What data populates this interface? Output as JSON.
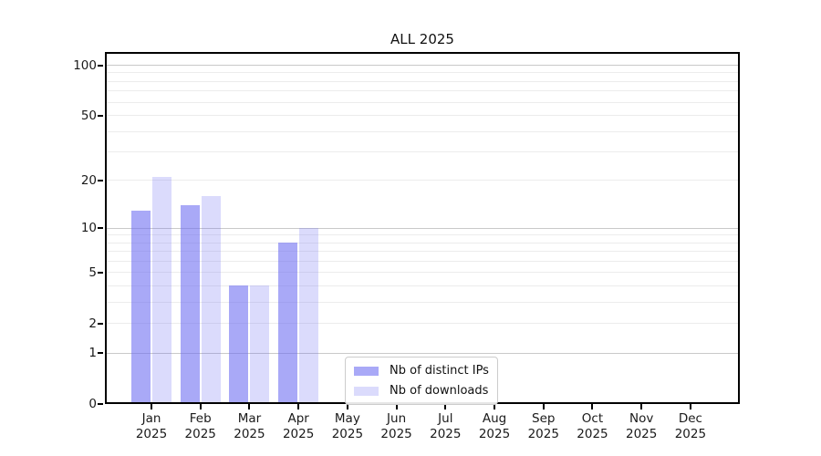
{
  "chart_data": {
    "type": "bar",
    "title": "ALL 2025",
    "categories": [
      "Jan",
      "Feb",
      "Mar",
      "Apr",
      "May",
      "Jun",
      "Jul",
      "Aug",
      "Sep",
      "Oct",
      "Nov",
      "Dec"
    ],
    "x_tick_year": "2025",
    "series": [
      {
        "name": "Nb of distinct IPs",
        "color": "#7070f2",
        "alpha": 0.6,
        "values": [
          13,
          14,
          4,
          8,
          0,
          0,
          0,
          0,
          0,
          0,
          0,
          0
        ]
      },
      {
        "name": "Nb of downloads",
        "color": "#7070f2",
        "alpha": 0.25,
        "values": [
          21,
          16,
          4,
          10,
          0,
          0,
          0,
          0,
          0,
          0,
          0,
          0
        ]
      }
    ],
    "y_ticks": [
      0,
      1,
      2,
      5,
      10,
      20,
      50,
      100
    ],
    "yscale": "log1p",
    "ylim": [
      0,
      120
    ],
    "grid": true,
    "legend_position": "lower center"
  },
  "colors": {
    "major_grid": "#c9c9c9",
    "minor_grid": "#ececec",
    "spine": "#000000",
    "text": "#1a1a1a"
  }
}
